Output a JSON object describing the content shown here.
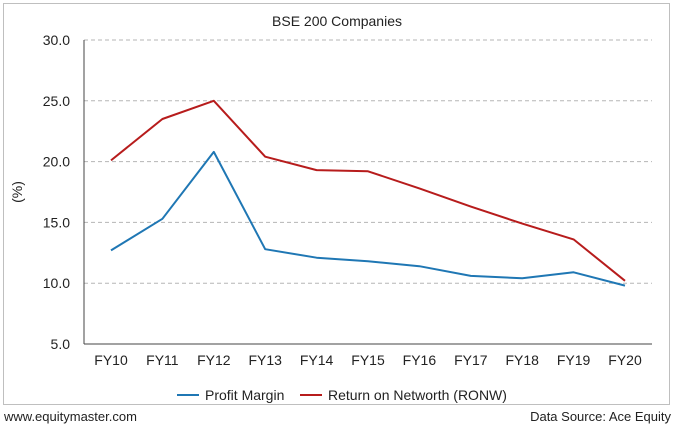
{
  "chart_data": {
    "type": "line",
    "title": "BSE 200 Companies",
    "ylabel": "(%)",
    "xlabel": "",
    "ylim": [
      5.0,
      30.0
    ],
    "yticks": [
      "5.0",
      "10.0",
      "15.0",
      "20.0",
      "25.0",
      "30.0"
    ],
    "categories": [
      "FY10",
      "FY11",
      "FY12",
      "FY13",
      "FY14",
      "FY15",
      "FY16",
      "FY17",
      "FY18",
      "FY19",
      "FY20"
    ],
    "grid": true,
    "legend": "bottom",
    "series": [
      {
        "name": "Profit Margin",
        "color": "#1f77b4",
        "values": [
          12.7,
          15.3,
          20.8,
          12.8,
          12.1,
          11.8,
          11.4,
          10.6,
          10.4,
          10.9,
          9.8
        ]
      },
      {
        "name": "Return on Networth (RONW)",
        "color": "#b71c1c",
        "values": [
          20.1,
          23.5,
          25.0,
          20.4,
          19.3,
          19.2,
          17.8,
          16.3,
          14.9,
          13.6,
          10.2
        ]
      }
    ]
  },
  "footer": {
    "website": "www.equitymaster.com",
    "source": "Data Source: Ace Equity"
  }
}
